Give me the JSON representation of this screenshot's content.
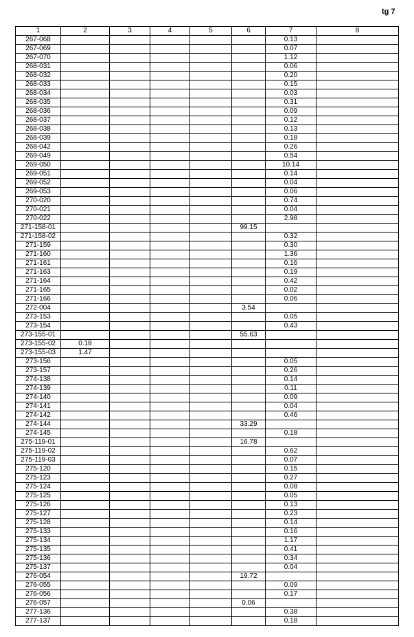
{
  "page_ref": "tg 7",
  "headers": [
    "1",
    "2",
    "3",
    "4",
    "5",
    "6",
    "7",
    "8"
  ],
  "rows": [
    [
      "267-068",
      "",
      "",
      "",
      "",
      "",
      "0.13",
      ""
    ],
    [
      "267-069",
      "",
      "",
      "",
      "",
      "",
      "0.07",
      ""
    ],
    [
      "267-070",
      "",
      "",
      "",
      "",
      "",
      "1.12",
      ""
    ],
    [
      "268-031",
      "",
      "",
      "",
      "",
      "",
      "0.06",
      ""
    ],
    [
      "268-032",
      "",
      "",
      "",
      "",
      "",
      "0.20",
      ""
    ],
    [
      "268-033",
      "",
      "",
      "",
      "",
      "",
      "0.15",
      ""
    ],
    [
      "268-034",
      "",
      "",
      "",
      "",
      "",
      "0.03",
      ""
    ],
    [
      "268-035",
      "",
      "",
      "",
      "",
      "",
      "0.31",
      ""
    ],
    [
      "268-036",
      "",
      "",
      "",
      "",
      "",
      "0.09",
      ""
    ],
    [
      "268-037",
      "",
      "",
      "",
      "",
      "",
      "0.12",
      ""
    ],
    [
      "268-038",
      "",
      "",
      "",
      "",
      "",
      "0.13",
      ""
    ],
    [
      "268-039",
      "",
      "",
      "",
      "",
      "",
      "0.18",
      ""
    ],
    [
      "268-042",
      "",
      "",
      "",
      "",
      "",
      "0.26",
      ""
    ],
    [
      "269-049",
      "",
      "",
      "",
      "",
      "",
      "0.54",
      ""
    ],
    [
      "269-050",
      "",
      "",
      "",
      "",
      "",
      "10.14",
      ""
    ],
    [
      "269-051",
      "",
      "",
      "",
      "",
      "",
      "0.14",
      ""
    ],
    [
      "269-052",
      "",
      "",
      "",
      "",
      "",
      "0.04",
      ""
    ],
    [
      "269-053",
      "",
      "",
      "",
      "",
      "",
      "0.06",
      ""
    ],
    [
      "270-020",
      "",
      "",
      "",
      "",
      "",
      "0.74",
      ""
    ],
    [
      "270-021",
      "",
      "",
      "",
      "",
      "",
      "0.04",
      ""
    ],
    [
      "270-022",
      "",
      "",
      "",
      "",
      "",
      "2.98",
      ""
    ],
    [
      "271-158-01",
      "",
      "",
      "",
      "",
      "99.15",
      "",
      ""
    ],
    [
      "271-158-02",
      "",
      "",
      "",
      "",
      "",
      "0.32",
      ""
    ],
    [
      "271-159",
      "",
      "",
      "",
      "",
      "",
      "0.30",
      ""
    ],
    [
      "271-160",
      "",
      "",
      "",
      "",
      "",
      "1.36",
      ""
    ],
    [
      "271-161",
      "",
      "",
      "",
      "",
      "",
      "0.16",
      ""
    ],
    [
      "271-163",
      "",
      "",
      "",
      "",
      "",
      "0.19",
      ""
    ],
    [
      "271-164",
      "",
      "",
      "",
      "",
      "",
      "0.42",
      ""
    ],
    [
      "271-165",
      "",
      "",
      "",
      "",
      "",
      "0.02",
      ""
    ],
    [
      "271-166",
      "",
      "",
      "",
      "",
      "",
      "0.06",
      ""
    ],
    [
      "272-004",
      "",
      "",
      "",
      "",
      "3.54",
      "",
      ""
    ],
    [
      "273-153",
      "",
      "",
      "",
      "",
      "",
      "0.05",
      ""
    ],
    [
      "273-154",
      "",
      "",
      "",
      "",
      "",
      "0.43",
      ""
    ],
    [
      "273-155-01",
      "",
      "",
      "",
      "",
      "55.63",
      "",
      ""
    ],
    [
      "273-155-02",
      "0.18",
      "",
      "",
      "",
      "",
      "",
      ""
    ],
    [
      "273-155-03",
      "1.47",
      "",
      "",
      "",
      "",
      "",
      ""
    ],
    [
      "273-156",
      "",
      "",
      "",
      "",
      "",
      "0.05",
      ""
    ],
    [
      "273-157",
      "",
      "",
      "",
      "",
      "",
      "0.26",
      ""
    ],
    [
      "274-138",
      "",
      "",
      "",
      "",
      "",
      "0.14",
      ""
    ],
    [
      "274-139",
      "",
      "",
      "",
      "",
      "",
      "0.11",
      ""
    ],
    [
      "274-140",
      "",
      "",
      "",
      "",
      "",
      "0.09",
      ""
    ],
    [
      "274-141",
      "",
      "",
      "",
      "",
      "",
      "0.04",
      ""
    ],
    [
      "274-142",
      "",
      "",
      "",
      "",
      "",
      "0.46",
      ""
    ],
    [
      "274-144",
      "",
      "",
      "",
      "",
      "33.29",
      "",
      ""
    ],
    [
      "274-145",
      "",
      "",
      "",
      "",
      "",
      "0.18",
      ""
    ],
    [
      "275-119-01",
      "",
      "",
      "",
      "",
      "16.78",
      "",
      ""
    ],
    [
      "275-119-02",
      "",
      "",
      "",
      "",
      "",
      "0.62",
      ""
    ],
    [
      "275-119-03",
      "",
      "",
      "",
      "",
      "",
      "0.07",
      ""
    ],
    [
      "275-120",
      "",
      "",
      "",
      "",
      "",
      "0.15",
      ""
    ],
    [
      "275-123",
      "",
      "",
      "",
      "",
      "",
      "0.27",
      ""
    ],
    [
      "275-124",
      "",
      "",
      "",
      "",
      "",
      "0.08",
      ""
    ],
    [
      "275-125",
      "",
      "",
      "",
      "",
      "",
      "0.05",
      ""
    ],
    [
      "275-126",
      "",
      "",
      "",
      "",
      "",
      "0.13",
      ""
    ],
    [
      "275-127",
      "",
      "",
      "",
      "",
      "",
      "0.23",
      ""
    ],
    [
      "275-128",
      "",
      "",
      "",
      "",
      "",
      "0.14",
      ""
    ],
    [
      "275-133",
      "",
      "",
      "",
      "",
      "",
      "0.16",
      ""
    ],
    [
      "275-134",
      "",
      "",
      "",
      "",
      "",
      "1.17",
      ""
    ],
    [
      "275-135",
      "",
      "",
      "",
      "",
      "",
      "0.41",
      ""
    ],
    [
      "275-136",
      "",
      "",
      "",
      "",
      "",
      "0.34",
      ""
    ],
    [
      "275-137",
      "",
      "",
      "",
      "",
      "",
      "0.04",
      ""
    ],
    [
      "276-054",
      "",
      "",
      "",
      "",
      "19.72",
      "",
      ""
    ],
    [
      "276-055",
      "",
      "",
      "",
      "",
      "",
      "0.09",
      ""
    ],
    [
      "276-056",
      "",
      "",
      "",
      "",
      "",
      "0.17",
      ""
    ],
    [
      "276-057",
      "",
      "",
      "",
      "",
      "0.06",
      "",
      ""
    ],
    [
      "277-136",
      "",
      "",
      "",
      "",
      "",
      "0.38",
      ""
    ],
    [
      "277-137",
      "",
      "",
      "",
      "",
      "",
      "0.18",
      ""
    ]
  ]
}
